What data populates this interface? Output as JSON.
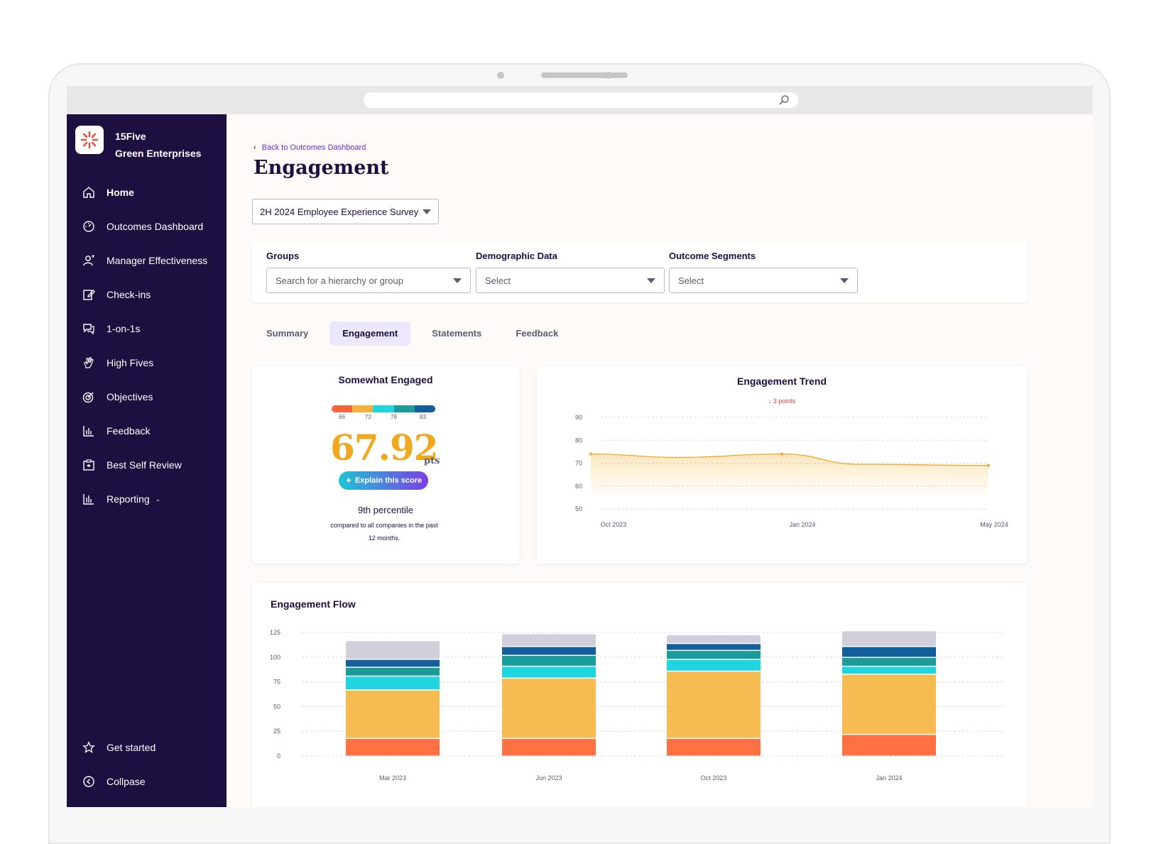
{
  "org": {
    "name_line1": "15Five",
    "name_line2": "Green Enterprises"
  },
  "sidebar": {
    "items": [
      {
        "label": "Home",
        "icon": "home-icon"
      },
      {
        "label": "Outcomes Dashboard",
        "icon": "gauge-icon"
      },
      {
        "label": "Manager Effectiveness",
        "icon": "manager-icon"
      },
      {
        "label": "Check-ins",
        "icon": "edit-icon"
      },
      {
        "label": "1-on-1s",
        "icon": "chat-icon"
      },
      {
        "label": "High Fives",
        "icon": "high-five-icon"
      },
      {
        "label": "Objectives",
        "icon": "target-icon"
      },
      {
        "label": "Feedback",
        "icon": "bar-chart-icon"
      },
      {
        "label": "Best Self Review",
        "icon": "review-icon"
      },
      {
        "label": "Reporting",
        "icon": "bar-chart-icon"
      }
    ],
    "bottom": [
      {
        "label": "Get started",
        "icon": "star-icon"
      },
      {
        "label": "Collpase",
        "icon": "collapse-icon"
      }
    ]
  },
  "header": {
    "back_link": "Back to Outcomes Dashboard",
    "title": "Engagement"
  },
  "survey": {
    "selected": "2H 2024 Employee Experience Survey"
  },
  "filters": {
    "groups_label": "Groups",
    "groups_placeholder": "Search for a hierarchy or group",
    "demographic_label": "Demographic Data",
    "demographic_value": "Select",
    "segments_label": "Outcome Segments",
    "segments_value": "Select"
  },
  "tabs": [
    {
      "label": "Summary",
      "active": false
    },
    {
      "label": "Engagement",
      "active": true
    },
    {
      "label": "Statements",
      "active": false
    },
    {
      "label": "Feedback",
      "active": false
    }
  ],
  "score": {
    "title": "Somewhat Engaged",
    "value": "67.92",
    "unit": "pts",
    "gauge_ticks": [
      "66",
      "72",
      "78",
      "83"
    ],
    "gauge_colors": [
      "#f4663a",
      "#f6b13a",
      "#1fd6e0",
      "#1a9c9a",
      "#125f9b"
    ],
    "explain_button": "Explain this score",
    "percentile": "9th percentile",
    "compared_text": "compared to all companies in the past 12 months."
  },
  "trend": {
    "title": "Engagement Trend",
    "delta": "3 points",
    "delta_color": "#d63a3a"
  },
  "flow": {
    "title": "Engagement Flow"
  },
  "chart_data": [
    {
      "type": "area",
      "title": "Engagement Trend",
      "x": [
        "Oct 2023",
        "Jan 2024",
        "May 2024"
      ],
      "x_points": [
        0,
        0.48,
        1
      ],
      "y": [
        74,
        74,
        69
      ],
      "line_points": [
        {
          "t": 0.0,
          "v": 74
        },
        {
          "t": 0.22,
          "v": 72.5
        },
        {
          "t": 0.48,
          "v": 74
        },
        {
          "t": 0.68,
          "v": 69.5
        },
        {
          "t": 1.0,
          "v": 69
        }
      ],
      "yticks": [
        90,
        80,
        70,
        60,
        50
      ],
      "ylim": [
        50,
        90
      ],
      "grid": true,
      "color": "#f0a81e"
    },
    {
      "type": "bar",
      "title": "Engagement Flow",
      "stacked": true,
      "categories": [
        "Mar 2023",
        "Jun 2023",
        "Oct 2023",
        "Jan 2024"
      ],
      "yticks": [
        125,
        100,
        75,
        50,
        25,
        0
      ],
      "ylim": [
        0,
        125
      ],
      "grid": true,
      "series": [
        {
          "color": "#ff7043",
          "values": [
            18,
            18,
            18,
            22
          ]
        },
        {
          "color": "#f6bc52",
          "values": [
            49,
            61,
            68,
            61
          ]
        },
        {
          "color": "#1fd6e0",
          "values": [
            14,
            12,
            12,
            8
          ]
        },
        {
          "color": "#1a9c9a",
          "values": [
            9,
            11,
            9,
            9
          ]
        },
        {
          "color": "#125f9b",
          "values": [
            8,
            9,
            7,
            11
          ]
        },
        {
          "color": "#d1d0da",
          "values": [
            19,
            13,
            9,
            16
          ]
        }
      ]
    }
  ]
}
